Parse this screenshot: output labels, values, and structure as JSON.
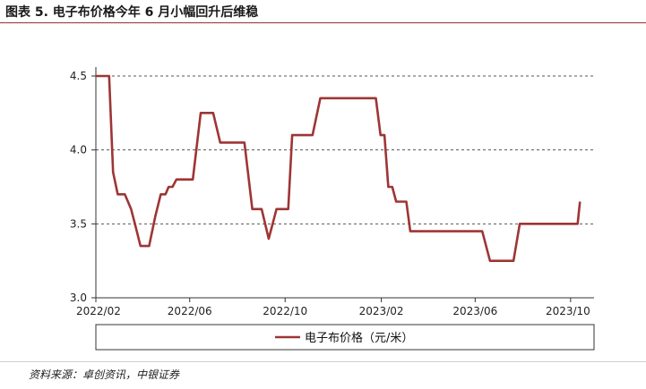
{
  "figure": {
    "title": "图表 5. 电子布价格今年 6 月小幅回升后维稳",
    "source": "资料来源：卓创资讯，中银证券"
  },
  "chart_data": {
    "type": "line",
    "title": "图表 5. 电子布价格今年 6 月小幅回升后维稳",
    "xlabel": "",
    "ylabel": "",
    "ylim": [
      3.0,
      4.5
    ],
    "yticks": [
      "3.0",
      "3.5",
      "4.0",
      "4.5"
    ],
    "xlim": [
      "2022-02-01",
      "2023-10-31"
    ],
    "xticks": [
      {
        "label": "2022/02",
        "date": "2022-02-01"
      },
      {
        "label": "2022/06",
        "date": "2022-06-01"
      },
      {
        "label": "2022/10",
        "date": "2022-10-01"
      },
      {
        "label": "2023/02",
        "date": "2023-02-01"
      },
      {
        "label": "2023/06",
        "date": "2023-06-01"
      },
      {
        "label": "2023/10",
        "date": "2023-10-01"
      }
    ],
    "grid": "horizontal-dashed",
    "legend_position": "bottom",
    "series": [
      {
        "name": "电子布价格（元/米）",
        "color": "#9e3535",
        "x": [
          "2022-02-01",
          "2022-02-05",
          "2022-02-12",
          "2022-02-18",
          "2022-02-23",
          "2022-03-01",
          "2022-03-05",
          "2022-03-10",
          "2022-03-18",
          "2022-03-23",
          "2022-03-30",
          "2022-04-05",
          "2022-04-10",
          "2022-04-18",
          "2022-04-25",
          "2022-05-01",
          "2022-05-05",
          "2022-05-10",
          "2022-05-15",
          "2022-05-20",
          "2022-05-25",
          "2022-06-01",
          "2022-06-05",
          "2022-06-15",
          "2022-06-20",
          "2022-06-25",
          "2022-07-01",
          "2022-07-10",
          "2022-07-20",
          "2022-07-26",
          "2022-08-01",
          "2022-08-10",
          "2022-08-20",
          "2022-08-28",
          "2022-09-01",
          "2022-09-10",
          "2022-09-15",
          "2022-09-20",
          "2022-09-25",
          "2022-09-30",
          "2022-10-05",
          "2022-10-10",
          "2022-10-15",
          "2022-10-20",
          "2022-10-28",
          "2022-11-05",
          "2022-11-15",
          "2022-11-25",
          "2022-12-01",
          "2022-12-10",
          "2022-12-20",
          "2023-01-01",
          "2023-01-10",
          "2023-01-20",
          "2023-01-25",
          "2023-01-31",
          "2023-02-05",
          "2023-02-10",
          "2023-02-15",
          "2023-02-20",
          "2023-02-25",
          "2023-03-01",
          "2023-03-05",
          "2023-03-10",
          "2023-03-20",
          "2023-03-31",
          "2023-04-05",
          "2023-04-10",
          "2023-04-20",
          "2023-05-01",
          "2023-05-15",
          "2023-05-25",
          "2023-06-01",
          "2023-06-10",
          "2023-06-20",
          "2023-06-26",
          "2023-07-01",
          "2023-07-10",
          "2023-07-20",
          "2023-07-28",
          "2023-08-05",
          "2023-08-15",
          "2023-08-25",
          "2023-09-01",
          "2023-09-10",
          "2023-09-20",
          "2023-09-28",
          "2023-10-01",
          "2023-10-05",
          "2023-10-10",
          "2023-10-13"
        ],
        "values": [
          4.5,
          4.5,
          4.5,
          4.5,
          3.85,
          3.7,
          3.7,
          3.7,
          3.6,
          3.5,
          3.35,
          3.35,
          3.35,
          3.55,
          3.7,
          3.7,
          3.75,
          3.75,
          3.8,
          3.8,
          3.8,
          3.8,
          3.8,
          4.25,
          4.25,
          4.25,
          4.25,
          4.05,
          4.05,
          4.05,
          4.05,
          4.05,
          3.6,
          3.6,
          3.6,
          3.4,
          3.5,
          3.6,
          3.6,
          3.6,
          3.6,
          4.1,
          4.1,
          4.1,
          4.1,
          4.1,
          4.35,
          4.35,
          4.35,
          4.35,
          4.35,
          4.35,
          4.35,
          4.35,
          4.35,
          4.1,
          4.1,
          3.75,
          3.75,
          3.65,
          3.65,
          3.65,
          3.65,
          3.45,
          3.45,
          3.45,
          3.45,
          3.45,
          3.45,
          3.45,
          3.45,
          3.45,
          3.45,
          3.45,
          3.25,
          3.25,
          3.25,
          3.25,
          3.25,
          3.5,
          3.5,
          3.5,
          3.5,
          3.5,
          3.5,
          3.5,
          3.5,
          3.5,
          3.5,
          3.5,
          3.65
        ]
      }
    ]
  }
}
